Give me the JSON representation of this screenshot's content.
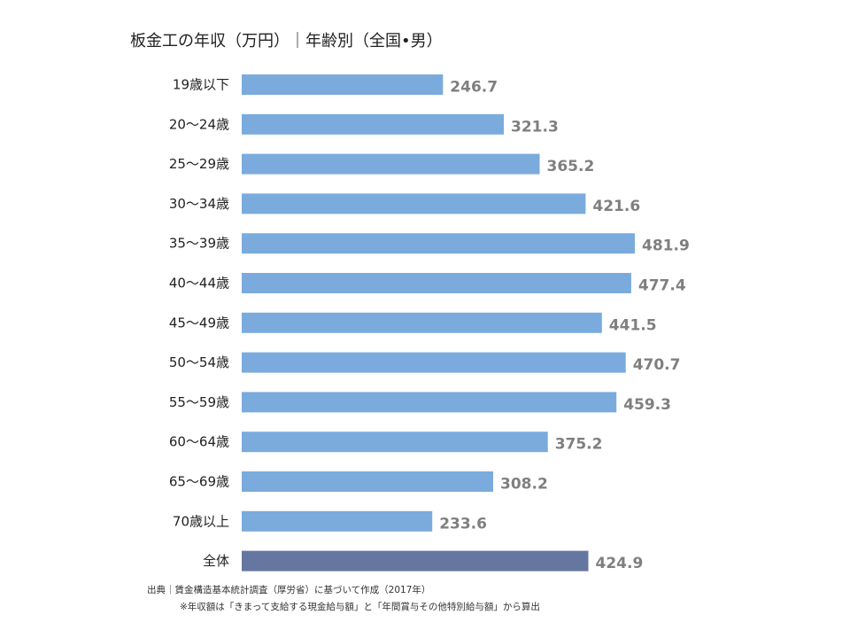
{
  "colors": {
    "bar": "#7aabdc",
    "total_bar": "#6577a1",
    "value_text": "#7f7f7f",
    "label_text": "#222222"
  },
  "chart_data": {
    "type": "bar",
    "orientation": "horizontal",
    "title": "板金工の年収（万円）｜年齢別（全国•男）",
    "categories": [
      "19歳以下",
      "20～24歳",
      "25～29歳",
      "30～34歳",
      "35～39歳",
      "40～44歳",
      "45～49歳",
      "50～54歳",
      "55～59歳",
      "60～64歳",
      "65～69歳",
      "70歳以上",
      "全体"
    ],
    "values": [
      246.7,
      321.3,
      365.2,
      421.6,
      481.9,
      477.4,
      441.5,
      470.7,
      459.3,
      375.2,
      308.2,
      233.6,
      424.9
    ],
    "value_labels": [
      "246.7",
      "321.3",
      "365.2",
      "421.6",
      "481.9",
      "477.4",
      "441.5",
      "470.7",
      "459.3",
      "375.2",
      "308.2",
      "233.6",
      "424.9"
    ],
    "xlim": [
      0,
      481.9
    ],
    "grid": false,
    "legend": "none"
  },
  "source": {
    "line1": "出典｜賃金構造基本統計調査（厚労省）に基づいて作成（2017年）",
    "line2": "※年収額は「きまって支給する現金給与額」と「年間賞与その他特別給与額」から算出"
  }
}
